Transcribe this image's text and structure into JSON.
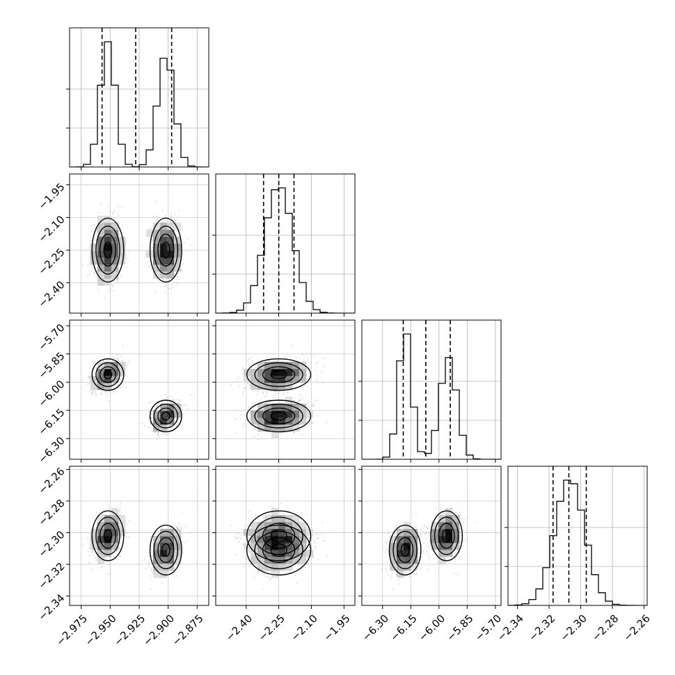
{
  "chart_data": {
    "type": "corner",
    "grid": true,
    "parameters": [
      {
        "range": [
          -2.985,
          -2.865
        ],
        "ticks": [
          -2.975,
          -2.95,
          -2.925,
          -2.9,
          -2.875
        ],
        "tick_labels": [
          "−2.975",
          "−2.950",
          "−2.925",
          "−2.900",
          "−2.875"
        ],
        "quantiles": [
          -2.957,
          -2.928,
          -2.897
        ],
        "modes": [
          {
            "mean": -2.952,
            "sd": 0.0065,
            "w": 0.5
          },
          {
            "mean": -2.902,
            "sd": 0.0072,
            "w": 0.5
          }
        ]
      },
      {
        "range": [
          -2.54,
          -1.9
        ],
        "ticks": [
          -2.4,
          -2.25,
          -2.1,
          -1.95
        ],
        "tick_labels": [
          "−2.40",
          "−2.25",
          "−2.10",
          "−1.95"
        ],
        "quantiles": [
          -2.32,
          -2.25,
          -2.18
        ],
        "modes": [
          {
            "mean": -2.25,
            "sd": 0.065,
            "w": 1
          }
        ]
      },
      {
        "range": [
          -6.41,
          -5.67
        ],
        "ticks": [
          -6.3,
          -6.15,
          -6.0,
          -5.85,
          -5.7
        ],
        "tick_labels": [
          "−6.30",
          "−6.15",
          "−6.00",
          "−5.85",
          "−5.70"
        ],
        "quantiles": [
          -6.19,
          -6.07,
          -5.94
        ],
        "modes": [
          {
            "mean": -6.18,
            "sd": 0.035,
            "w": 0.5
          },
          {
            "mean": -5.95,
            "sd": 0.045,
            "w": 0.5
          }
        ]
      },
      {
        "range": [
          -2.346,
          -2.258
        ],
        "ticks": [
          -2.34,
          -2.32,
          -2.3,
          -2.28,
          -2.26
        ],
        "tick_labels": [
          "−2.34",
          "−2.32",
          "−2.30",
          "−2.28",
          "−2.26"
        ],
        "quantiles": [
          -2.3175,
          -2.3075,
          -2.2965
        ],
        "modes": [
          {
            "mean": -2.307,
            "sd": 0.0095,
            "w": 1
          }
        ]
      }
    ],
    "clusters": [
      {
        "p1": -2.952,
        "p2": -2.25,
        "p3": -5.96,
        "p4": -2.302
      },
      {
        "p1": -2.902,
        "p2": -2.25,
        "p3": -6.18,
        "p4": -2.311
      }
    ]
  }
}
